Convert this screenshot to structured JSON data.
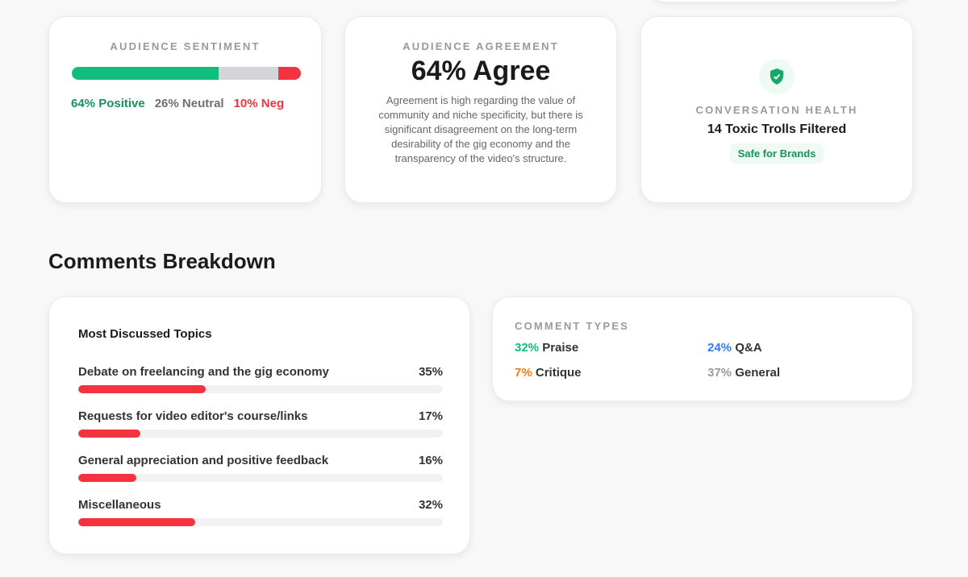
{
  "sentiment": {
    "title": "AUDIENCE SENTIMENT",
    "positive": 64,
    "neutral": 26,
    "negative": 10,
    "positive_label": "64% Positive",
    "neutral_label": "26% Neutral",
    "negative_label": "10% Neg",
    "colors": {
      "positive": "#10bd7c",
      "neutral": "#d5d5d7",
      "negative": "#f5323f"
    }
  },
  "agreement": {
    "title": "AUDIENCE AGREEMENT",
    "headline": "64% Agree",
    "description": "Agreement is high regarding the value of community and niche specificity, but there is significant disagreement on the long-term desirability of the gig economy and the transparency of the video's structure."
  },
  "health": {
    "icon": "shield-check-icon",
    "title": "CONVERSATION HEALTH",
    "headline": "14 Toxic Trolls Filtered",
    "badge": "Safe for Brands"
  },
  "section_title": "Comments Breakdown",
  "topics": {
    "title": "Most Discussed Topics",
    "items": [
      {
        "label": "Debate on freelancing and the gig economy",
        "pct_label": "35%",
        "value": 35
      },
      {
        "label": "Requests for video editor's course/links",
        "pct_label": "17%",
        "value": 17
      },
      {
        "label": "General appreciation and positive feedback",
        "pct_label": "16%",
        "value": 16
      },
      {
        "label": "Miscellaneous",
        "pct_label": "32%",
        "value": 32
      }
    ]
  },
  "comment_types": {
    "title": "COMMENT TYPES",
    "items": [
      {
        "pct": "32%",
        "label": "Praise",
        "color": "#10bd7c"
      },
      {
        "pct": "24%",
        "label": "Q&A",
        "color": "#2f7ef0"
      },
      {
        "pct": "7%",
        "label": "Critique",
        "color": "#f07d12"
      },
      {
        "pct": "37%",
        "label": "General",
        "color": "#9a9a9a"
      }
    ]
  }
}
